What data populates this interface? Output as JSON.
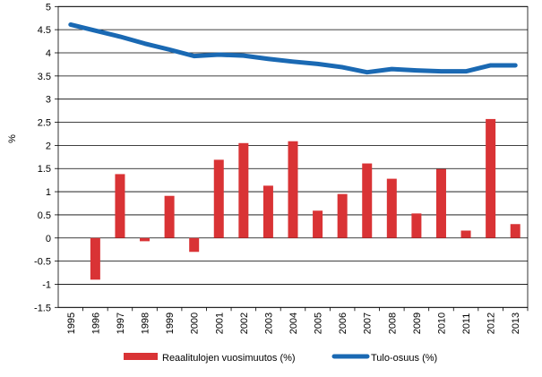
{
  "chart_data": {
    "type": "bar+line",
    "ylabel": "%",
    "ylim": [
      -1.5,
      5
    ],
    "yticks": [
      "5",
      "4.5",
      "4",
      "3.5",
      "3",
      "2.5",
      "2",
      "1.5",
      "1",
      "0.5",
      "0",
      "-0.5",
      "-1",
      "-1.5"
    ],
    "grid": true,
    "legend_placement": "bottom",
    "categories": [
      "1995",
      "1996",
      "1997",
      "1998",
      "1999",
      "2000",
      "2001",
      "2002",
      "2003",
      "2004",
      "2005",
      "2006",
      "2007",
      "2008",
      "2009",
      "2010",
      "2011",
      "2012",
      "2013"
    ],
    "series": [
      {
        "name": "Reaalitulojen vuosimuutos (%)",
        "type": "bar",
        "color": "#d93335",
        "values": [
          null,
          -0.9,
          1.38,
          -0.07,
          0.91,
          -0.3,
          1.69,
          2.05,
          1.13,
          2.09,
          0.59,
          0.95,
          1.61,
          1.28,
          0.53,
          1.49,
          0.16,
          2.57,
          0.3
        ]
      },
      {
        "name": "Tulo-osuus (%)",
        "type": "line",
        "color": "#1a69b3",
        "values": [
          4.61,
          4.48,
          4.35,
          4.2,
          4.07,
          3.93,
          3.96,
          3.94,
          3.87,
          3.81,
          3.76,
          3.69,
          3.58,
          3.65,
          3.62,
          3.6,
          3.6,
          3.73,
          3.73
        ]
      }
    ]
  }
}
